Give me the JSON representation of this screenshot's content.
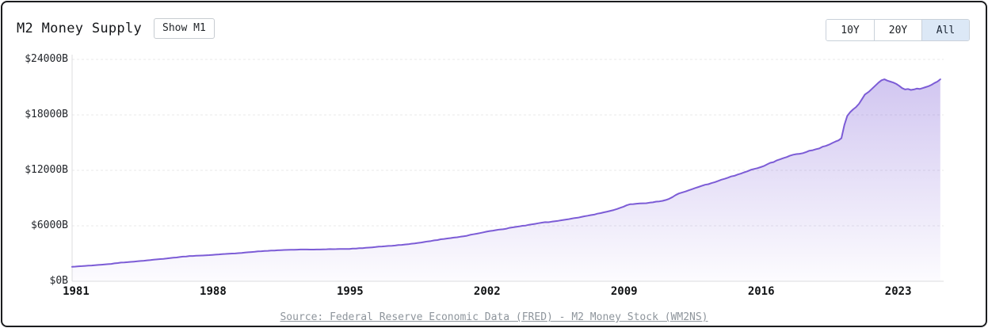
{
  "header": {
    "title": "M2 Money Supply",
    "toggle_button": "Show M1",
    "range_buttons": [
      {
        "label": "10Y",
        "active": false
      },
      {
        "label": "20Y",
        "active": false
      },
      {
        "label": "All",
        "active": true
      }
    ],
    "active_button_bg": "#dce8f6",
    "active_button_color": "#1b2635"
  },
  "footer": {
    "source": "Source: Federal Reserve Economic Data (FRED) - M2 Money Stock (WM2NS)"
  },
  "chart_data": {
    "type": "area",
    "title": "M2 Money Supply",
    "unit": "billions of USD",
    "line_color": "#7c5cd6",
    "grid_color": "#e8e8ea",
    "axis_color": "#dcdddf",
    "grid": true,
    "legend": "none",
    "ylim": [
      0,
      24000
    ],
    "x_range": [
      1980.8,
      2025.2
    ],
    "y_ticks": [
      {
        "value": 0,
        "label": "$0B"
      },
      {
        "value": 6000,
        "label": "$6000B"
      },
      {
        "value": 12000,
        "label": "$12000B"
      },
      {
        "value": 18000,
        "label": "$18000B"
      },
      {
        "value": 24000,
        "label": "$24000B"
      }
    ],
    "x_ticks": [
      {
        "value": 1981,
        "label": "1981"
      },
      {
        "value": 1988,
        "label": "1988"
      },
      {
        "value": 1995,
        "label": "1995"
      },
      {
        "value": 2002,
        "label": "2002"
      },
      {
        "value": 2009,
        "label": "2009"
      },
      {
        "value": 2016,
        "label": "2016"
      },
      {
        "value": 2023,
        "label": "2023"
      }
    ],
    "series": [
      {
        "name": "M2",
        "points": [
          [
            1980.8,
            1560
          ],
          [
            1981.3,
            1640
          ],
          [
            1981.8,
            1710
          ],
          [
            1982.3,
            1790
          ],
          [
            1982.8,
            1880
          ],
          [
            1983.3,
            2020
          ],
          [
            1983.8,
            2100
          ],
          [
            1984.3,
            2190
          ],
          [
            1984.8,
            2290
          ],
          [
            1985.3,
            2400
          ],
          [
            1985.8,
            2500
          ],
          [
            1986.3,
            2620
          ],
          [
            1986.8,
            2730
          ],
          [
            1987.3,
            2780
          ],
          [
            1987.8,
            2830
          ],
          [
            1988.3,
            2910
          ],
          [
            1988.8,
            2980
          ],
          [
            1989.3,
            3040
          ],
          [
            1989.8,
            3140
          ],
          [
            1990.3,
            3230
          ],
          [
            1990.8,
            3290
          ],
          [
            1991.3,
            3350
          ],
          [
            1991.8,
            3390
          ],
          [
            1992.3,
            3420
          ],
          [
            1992.8,
            3440
          ],
          [
            1993.3,
            3440
          ],
          [
            1993.8,
            3460
          ],
          [
            1994.3,
            3480
          ],
          [
            1994.8,
            3490
          ],
          [
            1995.3,
            3540
          ],
          [
            1995.8,
            3620
          ],
          [
            1996.3,
            3700
          ],
          [
            1996.8,
            3790
          ],
          [
            1997.3,
            3870
          ],
          [
            1997.8,
            3980
          ],
          [
            1998.3,
            4100
          ],
          [
            1998.8,
            4250
          ],
          [
            1999.3,
            4420
          ],
          [
            1999.8,
            4580
          ],
          [
            2000.3,
            4720
          ],
          [
            2000.8,
            4870
          ],
          [
            2001.3,
            5080
          ],
          [
            2001.8,
            5290
          ],
          [
            2002.3,
            5480
          ],
          [
            2002.8,
            5620
          ],
          [
            2003.3,
            5830
          ],
          [
            2003.8,
            6000
          ],
          [
            2004.3,
            6160
          ],
          [
            2004.8,
            6340
          ],
          [
            2005.3,
            6450
          ],
          [
            2005.8,
            6600
          ],
          [
            2006.3,
            6770
          ],
          [
            2006.8,
            6950
          ],
          [
            2007.3,
            7160
          ],
          [
            2007.8,
            7370
          ],
          [
            2008.3,
            7620
          ],
          [
            2008.8,
            7950
          ],
          [
            2009.3,
            8330
          ],
          [
            2009.8,
            8420
          ],
          [
            2010.3,
            8500
          ],
          [
            2010.8,
            8640
          ],
          [
            2011.3,
            8920
          ],
          [
            2011.8,
            9500
          ],
          [
            2012.3,
            9840
          ],
          [
            2012.8,
            10200
          ],
          [
            2013.3,
            10500
          ],
          [
            2013.8,
            10850
          ],
          [
            2014.3,
            11200
          ],
          [
            2014.8,
            11550
          ],
          [
            2015.3,
            11900
          ],
          [
            2015.8,
            12230
          ],
          [
            2016.3,
            12640
          ],
          [
            2016.8,
            13080
          ],
          [
            2017.3,
            13430
          ],
          [
            2017.8,
            13760
          ],
          [
            2018.3,
            13980
          ],
          [
            2018.8,
            14290
          ],
          [
            2019.3,
            14640
          ],
          [
            2019.8,
            15120
          ],
          [
            2020.1,
            15480
          ],
          [
            2020.25,
            16900
          ],
          [
            2020.4,
            17900
          ],
          [
            2020.55,
            18300
          ],
          [
            2020.7,
            18600
          ],
          [
            2020.85,
            18850
          ],
          [
            2021.0,
            19200
          ],
          [
            2021.15,
            19700
          ],
          [
            2021.3,
            20200
          ],
          [
            2021.5,
            20500
          ],
          [
            2021.7,
            20900
          ],
          [
            2021.85,
            21200
          ],
          [
            2022.0,
            21500
          ],
          [
            2022.15,
            21750
          ],
          [
            2022.3,
            21850
          ],
          [
            2022.45,
            21700
          ],
          [
            2022.6,
            21600
          ],
          [
            2022.75,
            21500
          ],
          [
            2022.9,
            21350
          ],
          [
            2023.05,
            21150
          ],
          [
            2023.2,
            20900
          ],
          [
            2023.35,
            20750
          ],
          [
            2023.5,
            20800
          ],
          [
            2023.65,
            20700
          ],
          [
            2023.8,
            20750
          ],
          [
            2023.95,
            20850
          ],
          [
            2024.1,
            20800
          ],
          [
            2024.25,
            20900
          ],
          [
            2024.4,
            21000
          ],
          [
            2024.55,
            21100
          ],
          [
            2024.7,
            21250
          ],
          [
            2024.85,
            21450
          ],
          [
            2025.0,
            21600
          ],
          [
            2025.15,
            21850
          ]
        ]
      }
    ]
  }
}
